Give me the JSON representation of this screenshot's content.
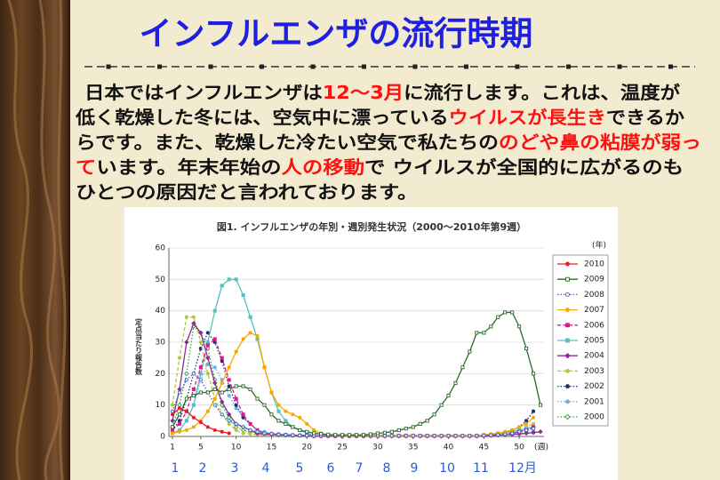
{
  "slide": {
    "title": "インフルエンザの流行時期",
    "paragraph": {
      "lines": [
        [
          {
            "text": "日本ではインフルエンザは"
          },
          {
            "text": "12～3月",
            "highlight": true
          },
          {
            "text": "に流行します。これは、温度が"
          }
        ],
        [
          {
            "text": "低く乾燥した冬には、空気中に漂っている"
          },
          {
            "text": "ウイルスが長生き",
            "highlight": true
          },
          {
            "text": "できるか"
          }
        ],
        [
          {
            "text": "らです。また、乾燥した冷たい空気で私たちの"
          },
          {
            "text": "のどや鼻の粘膜が弱っ",
            "highlight": true
          }
        ],
        [
          {
            "text": "て",
            "highlight": true
          },
          {
            "text": "います。年末年始の"
          },
          {
            "text": "人の移動",
            "highlight": true
          },
          {
            "text": "で ウイルスが全国的に広がるのも"
          }
        ],
        [
          {
            "text": "ひとつの原因だと言われております。"
          }
        ]
      ]
    },
    "month_labels": [
      "1",
      "2",
      "3",
      "4",
      "5",
      "6",
      "7",
      "8",
      "9",
      "10",
      "11",
      "12月"
    ]
  },
  "chart_data": {
    "type": "line",
    "title": "図1. インフルエンザの年別・週別発生状況（2000～2010年第9週）",
    "y_label": "定点当たり報告数",
    "x_unit": "(週)",
    "legend_title": "(年)",
    "grid": true,
    "xlim": [
      0.5,
      53.5
    ],
    "xticks": [
      1,
      5,
      10,
      15,
      20,
      25,
      30,
      35,
      40,
      45,
      50
    ],
    "ylim": [
      0,
      60
    ],
    "yticks": [
      0,
      10,
      20,
      30,
      40,
      50,
      60
    ],
    "x": [
      1,
      2,
      3,
      4,
      5,
      6,
      7,
      8,
      9,
      10,
      11,
      12,
      13,
      14,
      15,
      16,
      17,
      18,
      19,
      20,
      21,
      22,
      23,
      24,
      25,
      26,
      27,
      28,
      29,
      30,
      31,
      32,
      33,
      34,
      35,
      36,
      37,
      38,
      39,
      40,
      41,
      42,
      43,
      44,
      45,
      46,
      47,
      48,
      49,
      50,
      51,
      52,
      53
    ],
    "series": [
      {
        "name": "2010",
        "color": "#e4202a",
        "marker": "circle",
        "open": false,
        "line_style": "solid",
        "values": [
          7,
          9,
          8,
          6,
          4.5,
          3,
          2,
          1.5,
          1,
          null,
          null,
          null,
          null,
          null,
          null,
          null,
          null,
          null,
          null,
          null,
          null,
          null,
          null,
          null,
          null,
          null,
          null,
          null,
          null,
          null,
          null,
          null,
          null,
          null,
          null,
          null,
          null,
          null,
          null,
          null,
          null,
          null,
          null,
          null,
          null,
          null,
          null,
          null,
          null,
          null,
          null,
          null,
          null
        ]
      },
      {
        "name": "2009",
        "color": "#2d6a2d",
        "marker": "square",
        "open": true,
        "line_style": "solid",
        "values": [
          3,
          7,
          12,
          13,
          14,
          14,
          15,
          14,
          15,
          16,
          16,
          15,
          12,
          10,
          7,
          5,
          4,
          3,
          2,
          1.5,
          1,
          0.8,
          0.6,
          0.5,
          0.5,
          0.5,
          0.5,
          0.5,
          0.7,
          1,
          1.2,
          1.5,
          2,
          2.5,
          3,
          4,
          5,
          7,
          10,
          13,
          17,
          22,
          27,
          33,
          33,
          35,
          38,
          39.5,
          39.5,
          35,
          28,
          20,
          10
        ]
      },
      {
        "name": "2008",
        "color": "#3a6fc4",
        "marker": "circle",
        "open": true,
        "line_style": "dotted",
        "values": [
          8,
          14,
          18,
          20,
          18,
          14,
          10,
          7,
          5,
          4,
          3,
          2,
          1.5,
          1,
          0.8,
          0.6,
          0.5,
          0.4,
          0.3,
          0.3,
          0.2,
          0.2,
          0.2,
          0.2,
          0.2,
          0.2,
          0.2,
          0.2,
          0.2,
          0.2,
          0.2,
          0.2,
          0.2,
          0.2,
          0.2,
          0.2,
          0.2,
          0.2,
          0.2,
          0.2,
          0.2,
          0.2,
          0.2,
          0.2,
          0.3,
          0.4,
          0.5,
          0.7,
          1,
          1.5,
          2,
          2.5,
          null
        ]
      },
      {
        "name": "2007",
        "color": "#f5a800",
        "marker": "circle",
        "open": false,
        "line_style": "solid",
        "values": [
          1,
          1.5,
          2,
          3,
          5,
          8,
          12,
          17,
          22,
          27,
          31,
          33,
          32,
          22,
          14,
          10,
          8,
          7,
          6,
          4,
          2,
          1,
          0.5,
          0.3,
          0.2,
          0.2,
          0.2,
          0.2,
          0.2,
          0.2,
          0.2,
          0.2,
          0.2,
          0.2,
          0.2,
          0.2,
          0.2,
          0.2,
          0.2,
          0.2,
          0.2,
          0.2,
          0.2,
          0.2,
          0.5,
          0.8,
          1,
          1.5,
          2,
          3,
          4,
          6,
          null
        ]
      },
      {
        "name": "2006",
        "color": "#e0198c",
        "marker": "square",
        "open": false,
        "line_style": "dashed",
        "values": [
          2,
          4,
          8,
          15,
          22,
          29,
          31,
          25,
          18,
          12,
          7,
          4,
          2,
          1,
          0.8,
          0.6,
          0.5,
          0.4,
          0.3,
          0.3,
          0.2,
          0.2,
          0.2,
          0.2,
          0.2,
          0.2,
          0.2,
          0.2,
          0.2,
          0.2,
          0.2,
          0.2,
          0.2,
          0.2,
          0.2,
          0.2,
          0.2,
          0.2,
          0.2,
          0.2,
          0.2,
          0.2,
          0.2,
          0.2,
          0.3,
          0.4,
          0.6,
          0.8,
          1,
          1.5,
          2,
          3,
          null
        ]
      },
      {
        "name": "2005",
        "color": "#5bbfbf",
        "marker": "square",
        "open": false,
        "line_style": "solid",
        "values": [
          1,
          2,
          5,
          10,
          20,
          30,
          40,
          48,
          50,
          50,
          45,
          38,
          31,
          22,
          14,
          8,
          5,
          3,
          2,
          1,
          0.3,
          0.3,
          0.3,
          0.3,
          0.3,
          0.3,
          0.3,
          0.3,
          0.3,
          0.3,
          0.3,
          0.3,
          0.3,
          0.3,
          0.3,
          0.3,
          0.3,
          0.3,
          0.3,
          0.3,
          0.3,
          0.3,
          0.3,
          0.3,
          0.5,
          0.7,
          1,
          1.3,
          1.7,
          2,
          2.5,
          3,
          null
        ]
      },
      {
        "name": "2004",
        "color": "#8a2a9a",
        "marker": "diamond",
        "open": false,
        "line_style": "solid",
        "values": [
          5,
          15,
          30,
          36,
          33,
          25,
          17,
          11,
          7,
          4,
          3,
          2,
          1,
          0.8,
          0.6,
          0.5,
          0.4,
          0.3,
          0.3,
          0.2,
          0.1,
          0.1,
          0.1,
          0.1,
          0.1,
          0.1,
          0.1,
          0.1,
          0.1,
          0.1,
          0.1,
          0.1,
          0.1,
          0.1,
          0.1,
          0.1,
          0.1,
          0.1,
          0.1,
          0.1,
          0.1,
          0.1,
          0.1,
          0.1,
          0.2,
          0.3,
          0.4,
          0.5,
          0.6,
          0.8,
          1,
          1.2,
          1.5
        ]
      },
      {
        "name": "2003",
        "color": "#b6c83a",
        "marker": "circle",
        "open": false,
        "line_style": "dashed",
        "values": [
          10,
          25,
          38,
          38,
          30,
          20,
          12,
          7,
          4,
          2,
          1,
          0.8,
          0.6,
          0.5,
          0.4,
          0.3,
          0.3,
          0.2,
          0.2,
          0.2,
          0.1,
          0.1,
          0.1,
          0.1,
          0.1,
          0.1,
          0.1,
          0.1,
          0.1,
          0.1,
          0.1,
          0.1,
          0.1,
          0.1,
          0.1,
          0.1,
          0.1,
          0.1,
          0.1,
          0.1,
          0.1,
          0.1,
          0.1,
          0.1,
          0.3,
          0.5,
          0.8,
          1,
          1.5,
          2,
          3,
          4,
          null
        ]
      },
      {
        "name": "2002",
        "color": "#1f2f7a",
        "marker": "circle",
        "open": false,
        "line_style": "dotted",
        "values": [
          2,
          5,
          12,
          20,
          28,
          33,
          30,
          24,
          16,
          10,
          6,
          4,
          2,
          1,
          0.8,
          0.6,
          0.5,
          0.4,
          0.3,
          0.3,
          0.1,
          0.1,
          0.1,
          0.1,
          0.1,
          0.1,
          0.1,
          0.1,
          0.1,
          0.1,
          0.1,
          0.1,
          0.1,
          0.1,
          0.1,
          0.1,
          0.1,
          0.1,
          0.1,
          0.1,
          0.1,
          0.1,
          0.1,
          0.1,
          0.3,
          0.5,
          0.8,
          1.2,
          2,
          3,
          5,
          8,
          null
        ]
      },
      {
        "name": "2001",
        "color": "#6fb0e0",
        "marker": "circle",
        "open": false,
        "line_style": "dotted",
        "values": [
          1,
          2,
          5,
          10,
          18,
          23,
          22,
          18,
          13,
          9,
          6,
          4,
          2,
          1.5,
          1,
          0.8,
          0.6,
          0.5,
          0.4,
          0.3,
          0.1,
          0.1,
          0.1,
          0.1,
          0.1,
          0.1,
          0.1,
          0.1,
          0.1,
          0.1,
          0.1,
          0.1,
          0.1,
          0.1,
          0.1,
          0.1,
          0.1,
          0.1,
          0.1,
          0.1,
          0.1,
          0.1,
          0.1,
          0.1,
          0.2,
          0.3,
          0.4,
          0.6,
          0.8,
          1,
          1.3,
          1.7,
          null
        ]
      },
      {
        "name": "2000",
        "color": "#3aa03a",
        "marker": "diamond",
        "open": true,
        "line_style": "dotted",
        "values": [
          3,
          10,
          20,
          35,
          33,
          28,
          18,
          10,
          6,
          3,
          2,
          1.5,
          1,
          0.8,
          0.6,
          0.5,
          0.4,
          0.3,
          0.3,
          0.2,
          0.1,
          0.1,
          0.1,
          0.1,
          0.1,
          0.1,
          0.1,
          0.1,
          0.1,
          0.1,
          0.1,
          0.1,
          0.1,
          0.1,
          0.1,
          0.1,
          0.1,
          0.1,
          0.1,
          0.1,
          0.1,
          0.1,
          0.1,
          0.1,
          0.2,
          0.3,
          0.4,
          0.6,
          1,
          1.5,
          2,
          3,
          null
        ]
      }
    ]
  }
}
